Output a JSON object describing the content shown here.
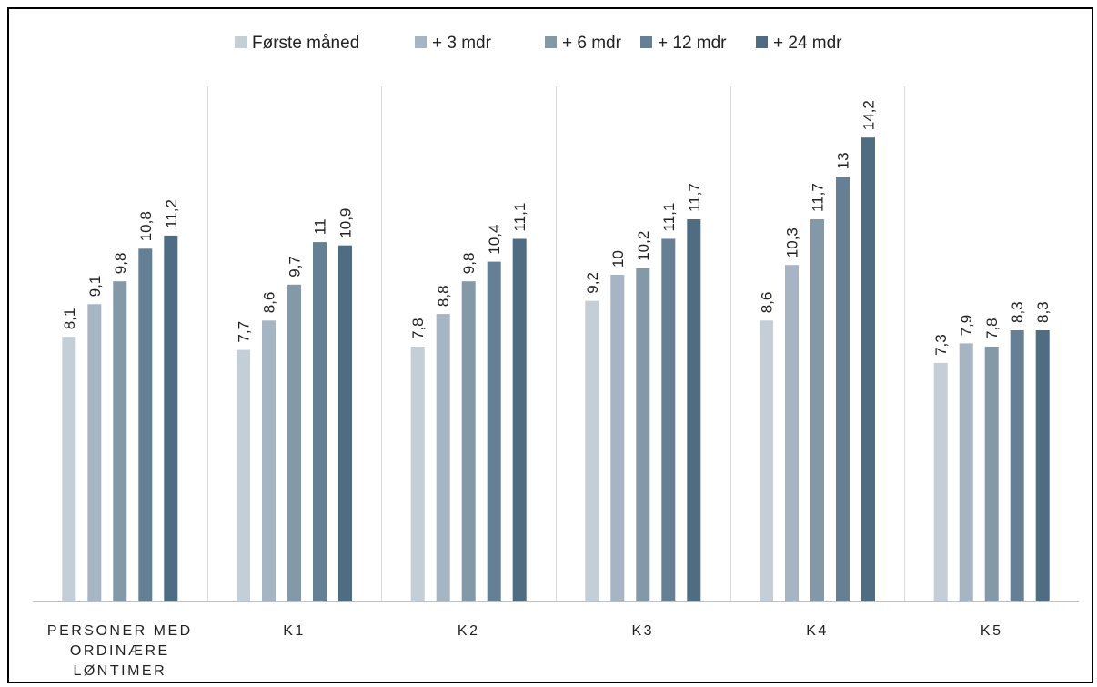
{
  "chart_data": {
    "type": "bar",
    "title": "",
    "xlabel": "",
    "ylabel": "",
    "categories": [
      [
        "PERSONER MED",
        "ORDINÆRE",
        "LØNTIMER"
      ],
      [
        "K1"
      ],
      [
        "K2"
      ],
      [
        "K3"
      ],
      [
        "K4"
      ],
      [
        "K5"
      ]
    ],
    "series": [
      {
        "name": "Første måned",
        "color": "#c3ced6",
        "values": [
          8.1,
          7.7,
          7.8,
          9.2,
          8.6,
          7.3
        ],
        "labels": [
          "8,1",
          "7,7",
          "7,8",
          "9,2",
          "8,6",
          "7,3"
        ]
      },
      {
        "name": "+ 3 mdr",
        "color": "#a5b5c3",
        "values": [
          9.1,
          8.6,
          8.8,
          10,
          10.3,
          7.9
        ],
        "labels": [
          "9,1",
          "8,6",
          "8,8",
          "10",
          "10,3",
          "7,9"
        ]
      },
      {
        "name": "+ 6 mdr",
        "color": "#8399a8",
        "values": [
          9.8,
          9.7,
          9.8,
          10.2,
          11.7,
          7.8
        ],
        "labels": [
          "9,8",
          "9,7",
          "9,8",
          "10,2",
          "11,7",
          "7,8"
        ]
      },
      {
        "name": "+ 12 mdr",
        "color": "#657f95",
        "values": [
          10.8,
          11,
          10.4,
          11.1,
          13,
          8.3
        ],
        "labels": [
          "10,8",
          "11",
          "10,4",
          "11,1",
          "13",
          "8,3"
        ]
      },
      {
        "name": "+ 24 mdr",
        "color": "#4f6d82",
        "values": [
          11.2,
          10.9,
          11.1,
          11.7,
          14.2,
          8.3
        ],
        "labels": [
          "11,2",
          "10,9",
          "11,1",
          "11,7",
          "14,2",
          "8,3"
        ]
      }
    ],
    "ylim": [
      0,
      15
    ],
    "legend_position": "top",
    "grid": "vertical separators between categories"
  }
}
